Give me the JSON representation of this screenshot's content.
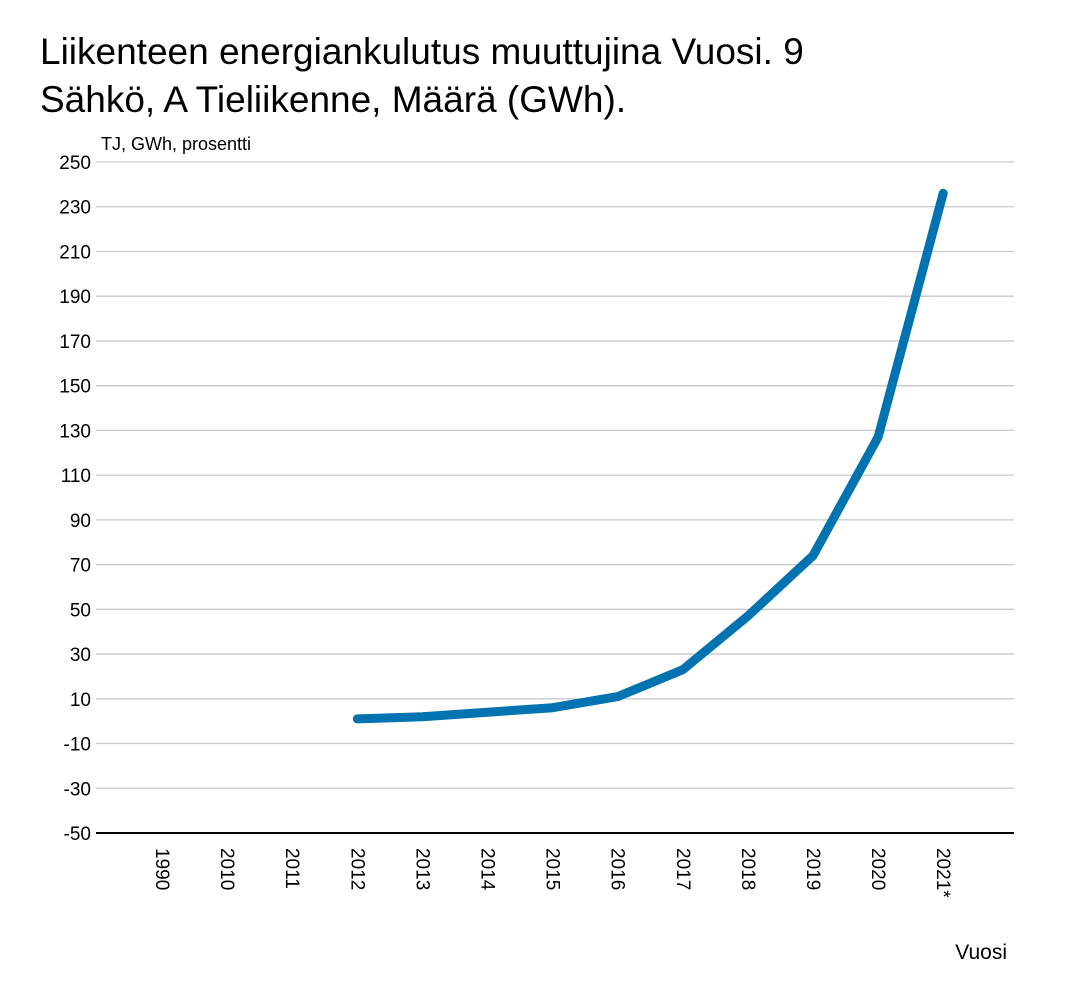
{
  "chart_data": {
    "type": "line",
    "title": "Liikenteen energiankulutus muuttujina Vuosi. 9",
    "subtitle": "Sähkö, A Tieliikenne, Määrä (GWh).",
    "unit_label": "TJ, GWh, prosentti",
    "xlabel": "Vuosi",
    "ylabel": "",
    "categories": [
      "1990",
      "2010",
      "2011",
      "2012",
      "2013",
      "2014",
      "2015",
      "2016",
      "2017",
      "2018",
      "2019",
      "2020",
      "2021*"
    ],
    "series": [
      {
        "values": [
          null,
          null,
          null,
          1,
          2,
          4,
          6,
          11,
          23,
          47,
          74,
          127,
          236
        ],
        "color": "#0073b0"
      }
    ],
    "ylim": [
      -50,
      250
    ],
    "yticks": [
      -50,
      -30,
      -10,
      10,
      30,
      50,
      70,
      90,
      110,
      130,
      150,
      170,
      190,
      210,
      230,
      250
    ],
    "grid": true,
    "legend": "none"
  }
}
